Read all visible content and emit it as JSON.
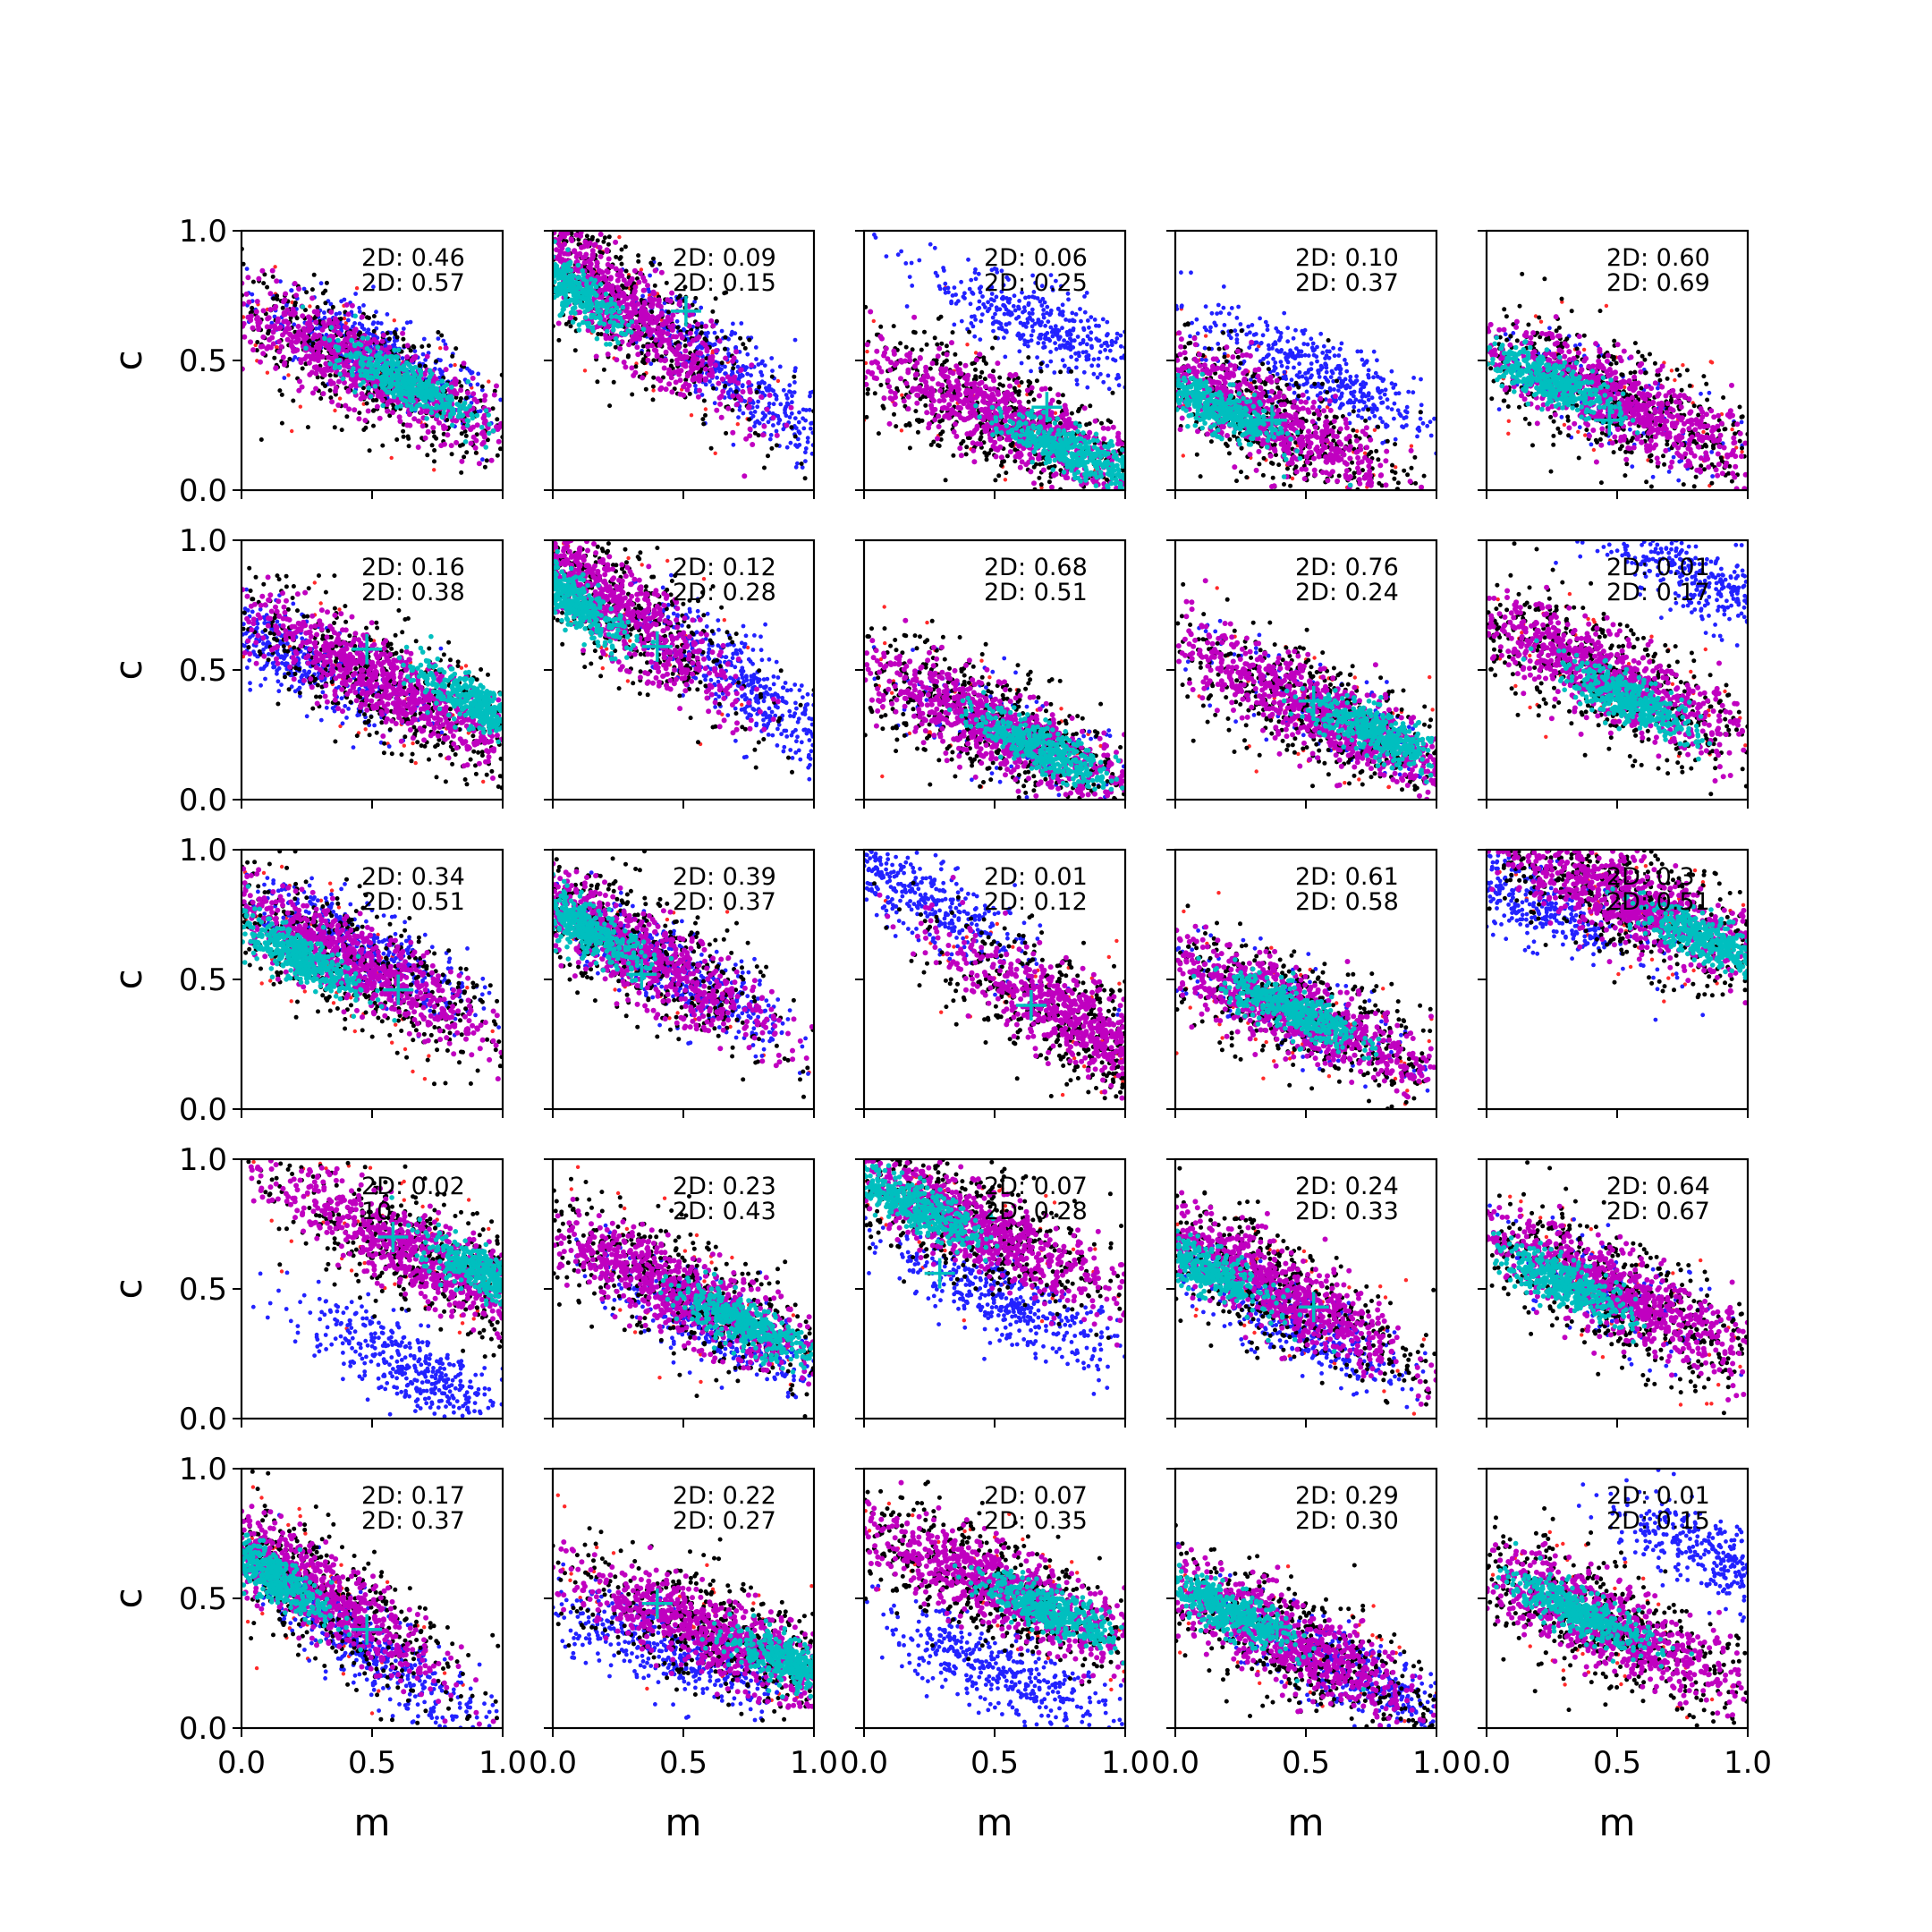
{
  "chart_data": {
    "type": "scatter",
    "layout": "5x5 grid of panels",
    "xlabel": "m",
    "ylabel": "c",
    "xlim": [
      0.0,
      1.0
    ],
    "ylim": [
      0.0,
      1.0
    ],
    "x_ticks": [
      "0.0",
      "0.5",
      "1.0"
    ],
    "y_ticks": [
      "0.0",
      "0.5",
      "1.0"
    ],
    "grid": false,
    "colors": {
      "red": "#ff2a2a",
      "black": "#000000",
      "blue": "#2222ff",
      "magenta": "#c000c0",
      "cyan": "#00bfbf",
      "marker": "#00bfbf"
    },
    "panels": [
      {
        "a1": "2D: 0.46",
        "a2": "2D: 0.57",
        "center": [
          0.45,
          0.48
        ],
        "slope": -0.5,
        "blue_offset": [
          0.05,
          0.05
        ],
        "cross": null,
        "cyan_center": [
          0.62,
          0.42
        ]
      },
      {
        "a1": "2D: 0.09",
        "a2": "2D: 0.15",
        "center": [
          0.25,
          0.72
        ],
        "slope": -0.8,
        "blue_offset": [
          0.45,
          -0.28
        ],
        "cross": [
          0.51,
          0.69
        ],
        "cyan_center": [
          0.05,
          0.79
        ]
      },
      {
        "a1": "2D: 0.06",
        "a2": "2D: 0.25",
        "center": [
          0.55,
          0.27
        ],
        "slope": -0.45,
        "blue_offset": [
          0.15,
          0.35
        ],
        "cross": [
          0.7,
          0.32
        ],
        "cyan_center": [
          0.8,
          0.15
        ]
      },
      {
        "a1": "2D: 0.10",
        "a2": "2D: 0.37",
        "center": [
          0.3,
          0.3
        ],
        "slope": -0.5,
        "blue_offset": [
          0.25,
          0.15
        ],
        "cross": [
          0.37,
          0.27
        ],
        "cyan_center": [
          0.15,
          0.32
        ]
      },
      {
        "a1": "2D: 0.60",
        "a2": "2D: 0.69",
        "center": [
          0.5,
          0.34
        ],
        "slope": -0.45,
        "blue_offset": [
          0,
          0
        ],
        "cross": [
          0.47,
          0.27
        ],
        "cyan_center": [
          0.25,
          0.42
        ]
      },
      {
        "a1": "2D: 0.16",
        "a2": "2D: 0.38",
        "center": [
          0.55,
          0.45
        ],
        "slope": -0.55,
        "blue_offset": [
          -0.35,
          0.1
        ],
        "cross": [
          0.48,
          0.58
        ],
        "cyan_center": [
          0.9,
          0.37
        ]
      },
      {
        "a1": "2D: 0.12",
        "a2": "2D: 0.28",
        "center": [
          0.2,
          0.78
        ],
        "slope": -0.8,
        "blue_offset": [
          0.55,
          -0.35
        ],
        "cross": [
          0.4,
          0.59
        ],
        "cyan_center": [
          0.07,
          0.77
        ]
      },
      {
        "a1": "2D: 0.68",
        "a2": "2D: 0.51",
        "center": [
          0.5,
          0.28
        ],
        "slope": -0.5,
        "blue_offset": [
          0,
          0
        ],
        "cross": null,
        "cyan_center": [
          0.68,
          0.2
        ]
      },
      {
        "a1": "2D: 0.76",
        "a2": "2D: 0.24",
        "center": [
          0.55,
          0.34
        ],
        "slope": -0.5,
        "blue_offset": [
          0,
          0
        ],
        "cross": [
          0.53,
          0.38
        ],
        "cyan_center": [
          0.78,
          0.25
        ]
      },
      {
        "a1": "2D: 0.01",
        "a2": "2D: 0.17",
        "center": [
          0.45,
          0.48
        ],
        "slope": -0.5,
        "blue_offset": [
          0.4,
          0.35
        ],
        "cross": null,
        "cyan_center": [
          0.55,
          0.38
        ]
      },
      {
        "a1": "2D: 0.34",
        "a2": "2D: 0.51",
        "center": [
          0.4,
          0.58
        ],
        "slope": -0.55,
        "blue_offset": [
          0.05,
          0.05
        ],
        "cross": [
          0.6,
          0.46
        ],
        "cyan_center": [
          0.2,
          0.6
        ]
      },
      {
        "a1": "2D: 0.39",
        "a2": "2D: 0.37",
        "center": [
          0.3,
          0.62
        ],
        "slope": -0.6,
        "blue_offset": [
          0.2,
          -0.1
        ],
        "cross": [
          0.34,
          0.52
        ],
        "cyan_center": [
          0.12,
          0.7
        ]
      },
      {
        "a1": "2D: 0.01",
        "a2": "2D: 0.12",
        "center": [
          0.85,
          0.32
        ],
        "slope": -0.6,
        "blue_offset": [
          -0.65,
          0.5
        ],
        "cross": [
          0.64,
          0.4
        ],
        "cyan_center": null
      },
      {
        "a1": "2D: 0.61",
        "a2": "2D: 0.58",
        "center": [
          0.45,
          0.38
        ],
        "slope": -0.45,
        "blue_offset": [
          0,
          0
        ],
        "cross": null,
        "cyan_center": [
          0.45,
          0.38
        ]
      },
      {
        "a1": "2D: 0.3",
        "a2": "2D: 0.51",
        "center": [
          0.55,
          0.8
        ],
        "slope": -0.45,
        "blue_offset": [
          -0.4,
          0.0
        ],
        "cross": null,
        "cyan_center": [
          0.85,
          0.65
        ]
      },
      {
        "a1": "2D: 0.02",
        "a2": "10",
        "center": [
          0.7,
          0.62
        ],
        "slope": -0.55,
        "blue_offset": [
          -0.05,
          -0.42
        ],
        "cross": [
          0.58,
          0.7
        ],
        "cyan_center": [
          0.95,
          0.55
        ]
      },
      {
        "a1": "2D: 0.23",
        "a2": "2D: 0.43",
        "center": [
          0.5,
          0.48
        ],
        "slope": -0.5,
        "blue_offset": [
          0.1,
          -0.1
        ],
        "cross": null,
        "cyan_center": [
          0.72,
          0.37
        ]
      },
      {
        "a1": "2D: 0.07",
        "a2": "2D: 0.28",
        "center": [
          0.4,
          0.75
        ],
        "slope": -0.5,
        "blue_offset": [
          0.15,
          -0.3
        ],
        "cross": [
          0.29,
          0.56
        ],
        "cyan_center": [
          0.2,
          0.82
        ]
      },
      {
        "a1": "2D: 0.24",
        "a2": "2D: 0.33",
        "center": [
          0.35,
          0.52
        ],
        "slope": -0.55,
        "blue_offset": [
          0.1,
          -0.15
        ],
        "cross": [
          0.53,
          0.43
        ],
        "cyan_center": [
          0.1,
          0.58
        ]
      },
      {
        "a1": "2D: 0.64",
        "a2": "2D: 0.67",
        "center": [
          0.5,
          0.48
        ],
        "slope": -0.5,
        "blue_offset": [
          0,
          0
        ],
        "cross": null,
        "cyan_center": [
          0.3,
          0.52
        ]
      },
      {
        "a1": "2D: 0.17",
        "a2": "2D: 0.37",
        "center": [
          0.25,
          0.55
        ],
        "slope": -0.7,
        "blue_offset": [
          0.25,
          -0.25
        ],
        "cross": [
          0.48,
          0.38
        ],
        "cyan_center": [
          0.1,
          0.6
        ]
      },
      {
        "a1": "2D: 0.22",
        "a2": "2D: 0.27",
        "center": [
          0.65,
          0.35
        ],
        "slope": -0.4,
        "blue_offset": [
          -0.2,
          -0.05
        ],
        "cross": [
          0.4,
          0.48
        ],
        "cyan_center": [
          0.92,
          0.25
        ]
      },
      {
        "a1": "2D: 0.07",
        "a2": "2D: 0.35",
        "center": [
          0.5,
          0.55
        ],
        "slope": -0.45,
        "blue_offset": [
          0.0,
          -0.33
        ],
        "cross": null,
        "cyan_center": [
          0.72,
          0.45
        ]
      },
      {
        "a1": "2D: 0.29",
        "a2": "2D: 0.30",
        "center": [
          0.4,
          0.35
        ],
        "slope": -0.5,
        "blue_offset": [
          0.3,
          -0.15
        ],
        "cross": [
          0.39,
          0.39
        ],
        "cyan_center": [
          0.2,
          0.45
        ]
      },
      {
        "a1": "2D: 0.01",
        "a2": "2D: 0.15",
        "center": [
          0.45,
          0.4
        ],
        "slope": -0.5,
        "blue_offset": [
          0.45,
          0.25
        ],
        "cross": null,
        "cyan_center": [
          0.35,
          0.45
        ]
      }
    ]
  }
}
